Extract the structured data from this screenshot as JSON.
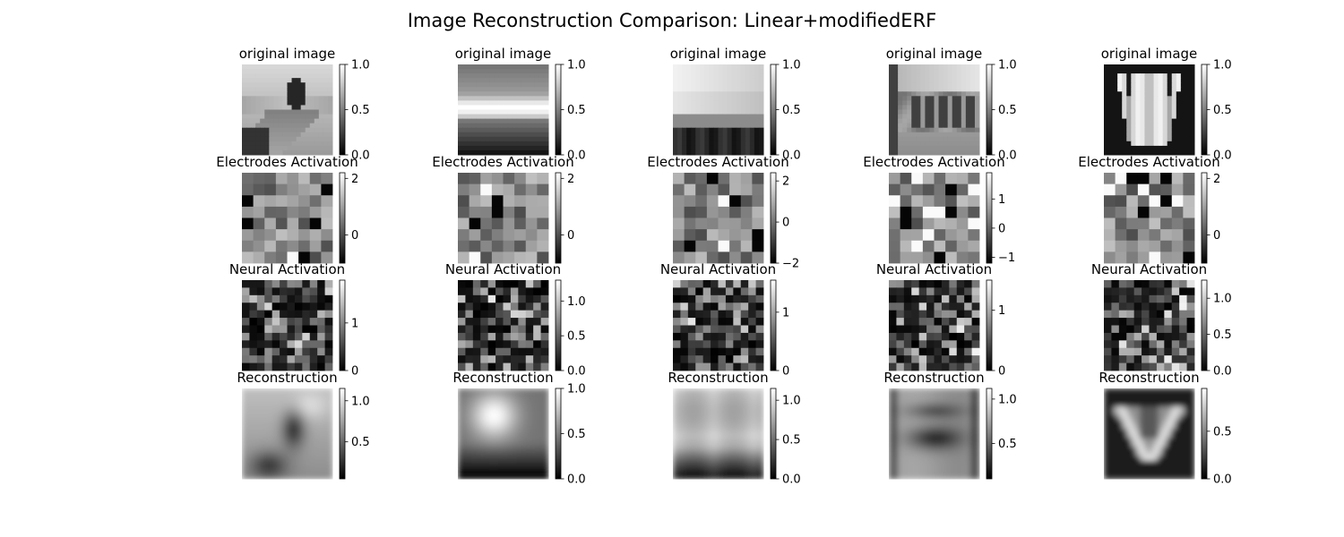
{
  "title": "Image Reconstruction Comparison: Linear+modifiedERF",
  "colormap": {
    "low": "#000000",
    "high": "#ffffff"
  },
  "chart_data": {
    "type": "heatmap",
    "grid": false,
    "row_titles": [
      "original image",
      "Electrodes Activation",
      "Neural Activation",
      "Reconstruction"
    ],
    "columns": [
      {
        "original": {
          "kind": "mountain-road",
          "vmin": 0.0,
          "vmax": 1.0,
          "ticks": [
            0.0,
            0.5,
            1.0
          ],
          "tick_labels": [
            "0.0",
            "0.5",
            "1.0"
          ]
        },
        "electrodes": {
          "kind": "checker",
          "seed": 11,
          "vmin": -1.0,
          "vmax": 2.2,
          "ticks": [
            0,
            2
          ],
          "tick_labels": [
            "0",
            "2"
          ]
        },
        "neural": {
          "kind": "blobs",
          "seed": 21,
          "vmin": 0.0,
          "vmax": 1.9,
          "ticks": [
            0,
            1
          ],
          "tick_labels": [
            "0",
            "1"
          ]
        },
        "reconstruction": {
          "kind": "recon-tree",
          "vmin": 0.05,
          "vmax": 1.15,
          "ticks": [
            0.5,
            1.0
          ],
          "tick_labels": [
            "0.5",
            "1.0"
          ]
        }
      },
      {
        "original": {
          "kind": "sunset-horizon",
          "vmin": 0.0,
          "vmax": 1.0,
          "ticks": [
            0.0,
            0.5,
            1.0
          ],
          "tick_labels": [
            "0.0",
            "0.5",
            "1.0"
          ]
        },
        "electrodes": {
          "kind": "checker",
          "seed": 12,
          "vmin": -1.0,
          "vmax": 2.2,
          "ticks": [
            0,
            2
          ],
          "tick_labels": [
            "0",
            "2"
          ]
        },
        "neural": {
          "kind": "blobs",
          "seed": 22,
          "vmin": 0.0,
          "vmax": 1.3,
          "ticks": [
            0.0,
            0.5,
            1.0
          ],
          "tick_labels": [
            "0.0",
            "0.5",
            "1.0"
          ]
        },
        "reconstruction": {
          "kind": "recon-glow",
          "vmin": 0.0,
          "vmax": 1.0,
          "ticks": [
            0.0,
            0.5,
            1.0
          ],
          "tick_labels": [
            "0.0",
            "0.5",
            "1.0"
          ]
        }
      },
      {
        "original": {
          "kind": "bright-sky",
          "vmin": 0.0,
          "vmax": 1.0,
          "ticks": [
            0.0,
            0.5,
            1.0
          ],
          "tick_labels": [
            "0.0",
            "0.5",
            "1.0"
          ]
        },
        "electrodes": {
          "kind": "checker",
          "seed": 13,
          "vmin": -2.0,
          "vmax": 2.4,
          "ticks": [
            -2,
            0,
            2
          ],
          "tick_labels": [
            "−2",
            "0",
            "2"
          ]
        },
        "neural": {
          "kind": "blobs",
          "seed": 23,
          "vmin": 0.0,
          "vmax": 1.55,
          "ticks": [
            0,
            1
          ],
          "tick_labels": [
            "0",
            "1"
          ]
        },
        "reconstruction": {
          "kind": "recon-bright",
          "vmin": 0.0,
          "vmax": 1.15,
          "ticks": [
            0.0,
            0.5,
            1.0
          ],
          "tick_labels": [
            "0.0",
            "0.5",
            "1.0"
          ]
        }
      },
      {
        "original": {
          "kind": "train",
          "vmin": 0.0,
          "vmax": 1.0,
          "ticks": [
            0.0,
            0.5,
            1.0
          ],
          "tick_labels": [
            "0.0",
            "0.5",
            "1.0"
          ]
        },
        "electrodes": {
          "kind": "checker",
          "seed": 14,
          "vmin": -1.2,
          "vmax": 1.9,
          "ticks": [
            -1,
            0,
            1
          ],
          "tick_labels": [
            "−1",
            "0",
            "1"
          ]
        },
        "neural": {
          "kind": "blobs",
          "seed": 24,
          "vmin": 0.0,
          "vmax": 1.5,
          "ticks": [
            0,
            1
          ],
          "tick_labels": [
            "0",
            "1"
          ]
        },
        "reconstruction": {
          "kind": "recon-band",
          "vmin": 0.1,
          "vmax": 1.12,
          "ticks": [
            0.5,
            1.0
          ],
          "tick_labels": [
            "0.5",
            "1.0"
          ]
        }
      },
      {
        "original": {
          "kind": "tulip",
          "vmin": 0.0,
          "vmax": 1.0,
          "ticks": [
            0.0,
            0.5,
            1.0
          ],
          "tick_labels": [
            "0.0",
            "0.5",
            "1.0"
          ]
        },
        "electrodes": {
          "kind": "checker",
          "seed": 15,
          "vmin": -1.0,
          "vmax": 2.2,
          "ticks": [
            0,
            2
          ],
          "tick_labels": [
            "0",
            "2"
          ]
        },
        "neural": {
          "kind": "blobs",
          "seed": 25,
          "vmin": 0.0,
          "vmax": 1.25,
          "ticks": [
            0.0,
            0.5,
            1.0
          ],
          "tick_labels": [
            "0.0",
            "0.5",
            "1.0"
          ]
        },
        "reconstruction": {
          "kind": "recon-vshape",
          "vmin": 0.0,
          "vmax": 0.95,
          "ticks": [
            0.0,
            0.5
          ],
          "tick_labels": [
            "0.0",
            "0.5"
          ]
        }
      }
    ]
  }
}
